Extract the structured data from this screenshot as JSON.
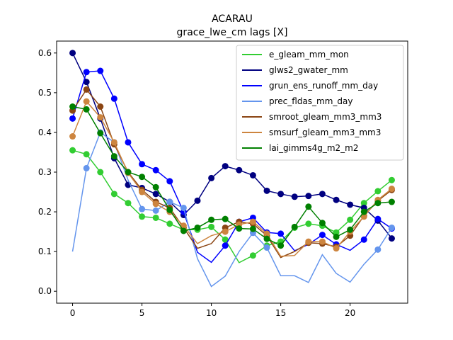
{
  "chart_data": {
    "type": "line",
    "title": "ACARAU",
    "subtitle": "grace_lwe_cm lags [X]",
    "xlabel": "",
    "ylabel": "",
    "xlim": [
      -1.15,
      24.15
    ],
    "ylim": [
      -0.03,
      0.63
    ],
    "xticks": [
      0,
      5,
      10,
      15,
      20
    ],
    "yticks": [
      0.0,
      0.1,
      0.2,
      0.3,
      0.4,
      0.5,
      0.6
    ],
    "legend_position": "top-right",
    "grid": false,
    "x": [
      0,
      1,
      2,
      3,
      4,
      5,
      6,
      7,
      8,
      9,
      10,
      11,
      12,
      13,
      14,
      15,
      16,
      17,
      18,
      19,
      20,
      21,
      22,
      23
    ],
    "series": [
      {
        "name": "e_gleam_mm_mon",
        "color": "#32cd32",
        "values": [
          0.355,
          0.345,
          0.3,
          0.245,
          0.222,
          0.188,
          0.185,
          0.17,
          0.155,
          0.155,
          0.162,
          0.13,
          0.072,
          0.09,
          0.115,
          0.125,
          0.16,
          0.17,
          0.165,
          0.148,
          0.18,
          0.222,
          0.252,
          0.28
        ],
        "markers": [
          0,
          1,
          2,
          3,
          4,
          5,
          6,
          7,
          8,
          9,
          10,
          11,
          13,
          14,
          15,
          16,
          17,
          18,
          19,
          20,
          21,
          22,
          23
        ]
      },
      {
        "name": "glws2_gwater_mm",
        "color": "#000080",
        "values": [
          0.6,
          0.527,
          0.435,
          0.335,
          0.268,
          0.26,
          0.245,
          0.225,
          0.192,
          0.228,
          0.285,
          0.315,
          0.305,
          0.292,
          0.253,
          0.245,
          0.238,
          0.24,
          0.245,
          0.23,
          0.218,
          0.21,
          0.178,
          0.133
        ],
        "markers": [
          0,
          1,
          2,
          3,
          4,
          5,
          6,
          7,
          8,
          9,
          10,
          11,
          12,
          13,
          14,
          15,
          16,
          17,
          18,
          19,
          20,
          21,
          22,
          23
        ]
      },
      {
        "name": "grun_ens_runoff_mm_day",
        "color": "#0000ff",
        "values": [
          0.435,
          0.552,
          0.555,
          0.485,
          0.375,
          0.32,
          0.305,
          0.277,
          0.2,
          0.098,
          0.073,
          0.115,
          0.175,
          0.185,
          0.148,
          0.145,
          0.102,
          0.118,
          0.142,
          0.118,
          0.103,
          0.13,
          0.182,
          0.158
        ],
        "markers": [
          0,
          1,
          2,
          3,
          4,
          5,
          6,
          7,
          8,
          11,
          12,
          13,
          14,
          15,
          18,
          19,
          21,
          22,
          23
        ]
      },
      {
        "name": "prec_fldas_mm_day",
        "color": "#6495ed",
        "values": [
          0.1,
          0.31,
          0.4,
          0.375,
          0.28,
          0.207,
          0.203,
          0.225,
          0.21,
          0.082,
          0.012,
          0.038,
          0.1,
          0.147,
          0.11,
          0.039,
          0.039,
          0.022,
          0.092,
          0.045,
          0.023,
          0.068,
          0.105,
          0.16
        ],
        "markers": [
          1,
          2,
          3,
          5,
          6,
          7,
          8,
          13,
          14,
          22,
          23
        ]
      },
      {
        "name": "smroot_gleam_mm3_mm3",
        "color": "#8b4513",
        "values": [
          0.455,
          0.508,
          0.465,
          0.37,
          0.3,
          0.255,
          0.225,
          0.21,
          0.16,
          0.108,
          0.12,
          0.16,
          0.175,
          0.17,
          0.14,
          0.085,
          0.1,
          0.122,
          0.12,
          0.112,
          0.14,
          0.19,
          0.228,
          0.255
        ],
        "markers": [
          0,
          1,
          2,
          3,
          4,
          5,
          6,
          7,
          8,
          11,
          12,
          13,
          14,
          17,
          18,
          19,
          20,
          21,
          22,
          23
        ]
      },
      {
        "name": "smsurf_gleam_mm3_mm3",
        "color": "#cd853f",
        "values": [
          0.39,
          0.478,
          0.438,
          0.375,
          0.298,
          0.25,
          0.22,
          0.2,
          0.165,
          0.12,
          0.14,
          0.15,
          0.168,
          0.175,
          0.145,
          0.088,
          0.09,
          0.125,
          0.125,
          0.108,
          0.15,
          0.188,
          0.23,
          0.258
        ],
        "markers": [
          0,
          1,
          2,
          3,
          4,
          5,
          6,
          7,
          8,
          11,
          12,
          13,
          14,
          17,
          18,
          19,
          20,
          21,
          22,
          23
        ]
      },
      {
        "name": "lai_gimms4g_m2_m2",
        "color": "#008000",
        "values": [
          0.465,
          0.458,
          0.398,
          0.34,
          0.3,
          0.288,
          0.262,
          0.205,
          0.152,
          0.16,
          0.18,
          0.182,
          0.158,
          0.157,
          0.132,
          0.115,
          0.162,
          0.213,
          0.172,
          0.137,
          0.155,
          0.2,
          0.222,
          0.225
        ],
        "markers": [
          0,
          1,
          2,
          3,
          4,
          5,
          6,
          7,
          8,
          9,
          10,
          11,
          12,
          13,
          14,
          15,
          16,
          17,
          18,
          19,
          20,
          21,
          22,
          23
        ]
      }
    ]
  }
}
